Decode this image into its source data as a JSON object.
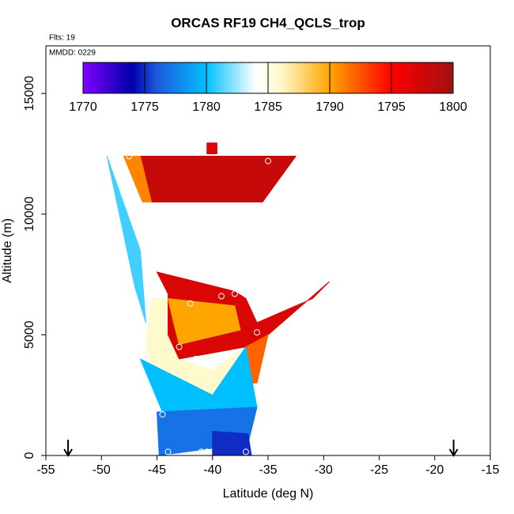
{
  "chart_data": {
    "type": "curtain",
    "title": "ORCAS RF19 CH4_QCLS_trop",
    "annotations": [
      "Flts: 19",
      "MMDD: 0229"
    ],
    "xlabel": "Latitude (deg N)",
    "ylabel": "Altitude (m)",
    "xlim": [
      -55,
      -15
    ],
    "ylim": [
      0,
      16970
    ],
    "xticks": [
      -55,
      -50,
      -45,
      -40,
      -35,
      -30,
      -25,
      -20,
      -15
    ],
    "yticks": [
      0,
      5000,
      10000,
      15000
    ],
    "colorbar_lim": [
      1770,
      1800
    ],
    "colorbar_ticks": [
      1770,
      1775,
      1780,
      1785,
      1790,
      1795,
      1800
    ],
    "colorscale": [
      [
        1770,
        "#7f00ff"
      ],
      [
        1774,
        "#0000aa"
      ],
      [
        1776,
        "#1e5adc"
      ],
      [
        1780,
        "#00bfff"
      ],
      [
        1784,
        "#ffffff"
      ],
      [
        1786,
        "#fffacd"
      ],
      [
        1790,
        "#ffa500"
      ],
      [
        1795,
        "#ff0000"
      ],
      [
        1800,
        "#a01010"
      ]
    ],
    "patches": [
      {
        "lat": [
          -49.5,
          -48,
          -44.5,
          -45.5,
          -46.5
        ],
        "alt": [
          12400,
          12400,
          7600,
          6500,
          8500
        ],
        "value": 1784
      },
      {
        "lat": [
          -49.5,
          -46.5,
          -46,
          -47
        ],
        "alt": [
          12400,
          8500,
          5500,
          7000
        ],
        "value": 1781
      },
      {
        "lat": [
          -46.5,
          -32.5,
          -35.5,
          -45.5
        ],
        "alt": [
          12400,
          12400,
          10500,
          10500
        ],
        "value": 1798
      },
      {
        "lat": [
          -48,
          -46.5,
          -45.5,
          -46.3
        ],
        "alt": [
          12400,
          12400,
          10500,
          10500
        ],
        "value": 1791
      },
      {
        "lat": [
          -45.5,
          -44,
          -43,
          -40,
          -37,
          -40,
          -44.5,
          -46
        ],
        "alt": [
          6500,
          6500,
          4000,
          3500,
          4500,
          2500,
          2300,
          4500
        ],
        "value": 1786
      },
      {
        "lat": [
          -45,
          -38,
          -37,
          -36,
          -31,
          -29.5,
          -35,
          -37,
          -43,
          -44,
          -44
        ],
        "alt": [
          7600,
          6800,
          6500,
          5500,
          6500,
          7200,
          5000,
          4500,
          4000,
          5000,
          6700
        ],
        "value": 1797
      },
      {
        "lat": [
          -44,
          -38,
          -37.5,
          -43,
          -43.5
        ],
        "alt": [
          6500,
          6200,
          5200,
          4600,
          5500
        ],
        "value": 1790
      },
      {
        "lat": [
          -37,
          -35,
          -36,
          -38.5
        ],
        "alt": [
          4500,
          5000,
          3000,
          3000
        ],
        "value": 1792
      },
      {
        "lat": [
          -46.5,
          -40,
          -37,
          -36,
          -44.5
        ],
        "alt": [
          4000,
          2500,
          4500,
          2000,
          1800
        ],
        "value": 1780
      },
      {
        "lat": [
          -45,
          -36,
          -36.8,
          -44.8
        ],
        "alt": [
          1800,
          2000,
          500,
          0
        ],
        "value": 1777
      },
      {
        "lat": [
          -40,
          -36.8,
          -36.5,
          -40
        ],
        "alt": [
          1000,
          900,
          0,
          0
        ],
        "value": 1775
      },
      {
        "lat": [
          -40.5,
          -39.6,
          -39.6,
          -40.5
        ],
        "alt": [
          12950,
          12950,
          12500,
          12500
        ],
        "value": 1797
      }
    ],
    "points": {
      "lat": [
        -47.5,
        -35,
        -31.5,
        -45.5,
        -42,
        -39.2,
        -38,
        -36,
        -43,
        -41.5,
        -44.5,
        -44,
        -41,
        -40.5,
        -37
      ],
      "alt": [
        12400,
        12200,
        12600,
        6300,
        6300,
        6600,
        6700,
        5100,
        4500,
        4000,
        1700,
        150,
        150,
        150,
        150
      ]
    },
    "arrows": [
      -53,
      -18.3
    ]
  }
}
